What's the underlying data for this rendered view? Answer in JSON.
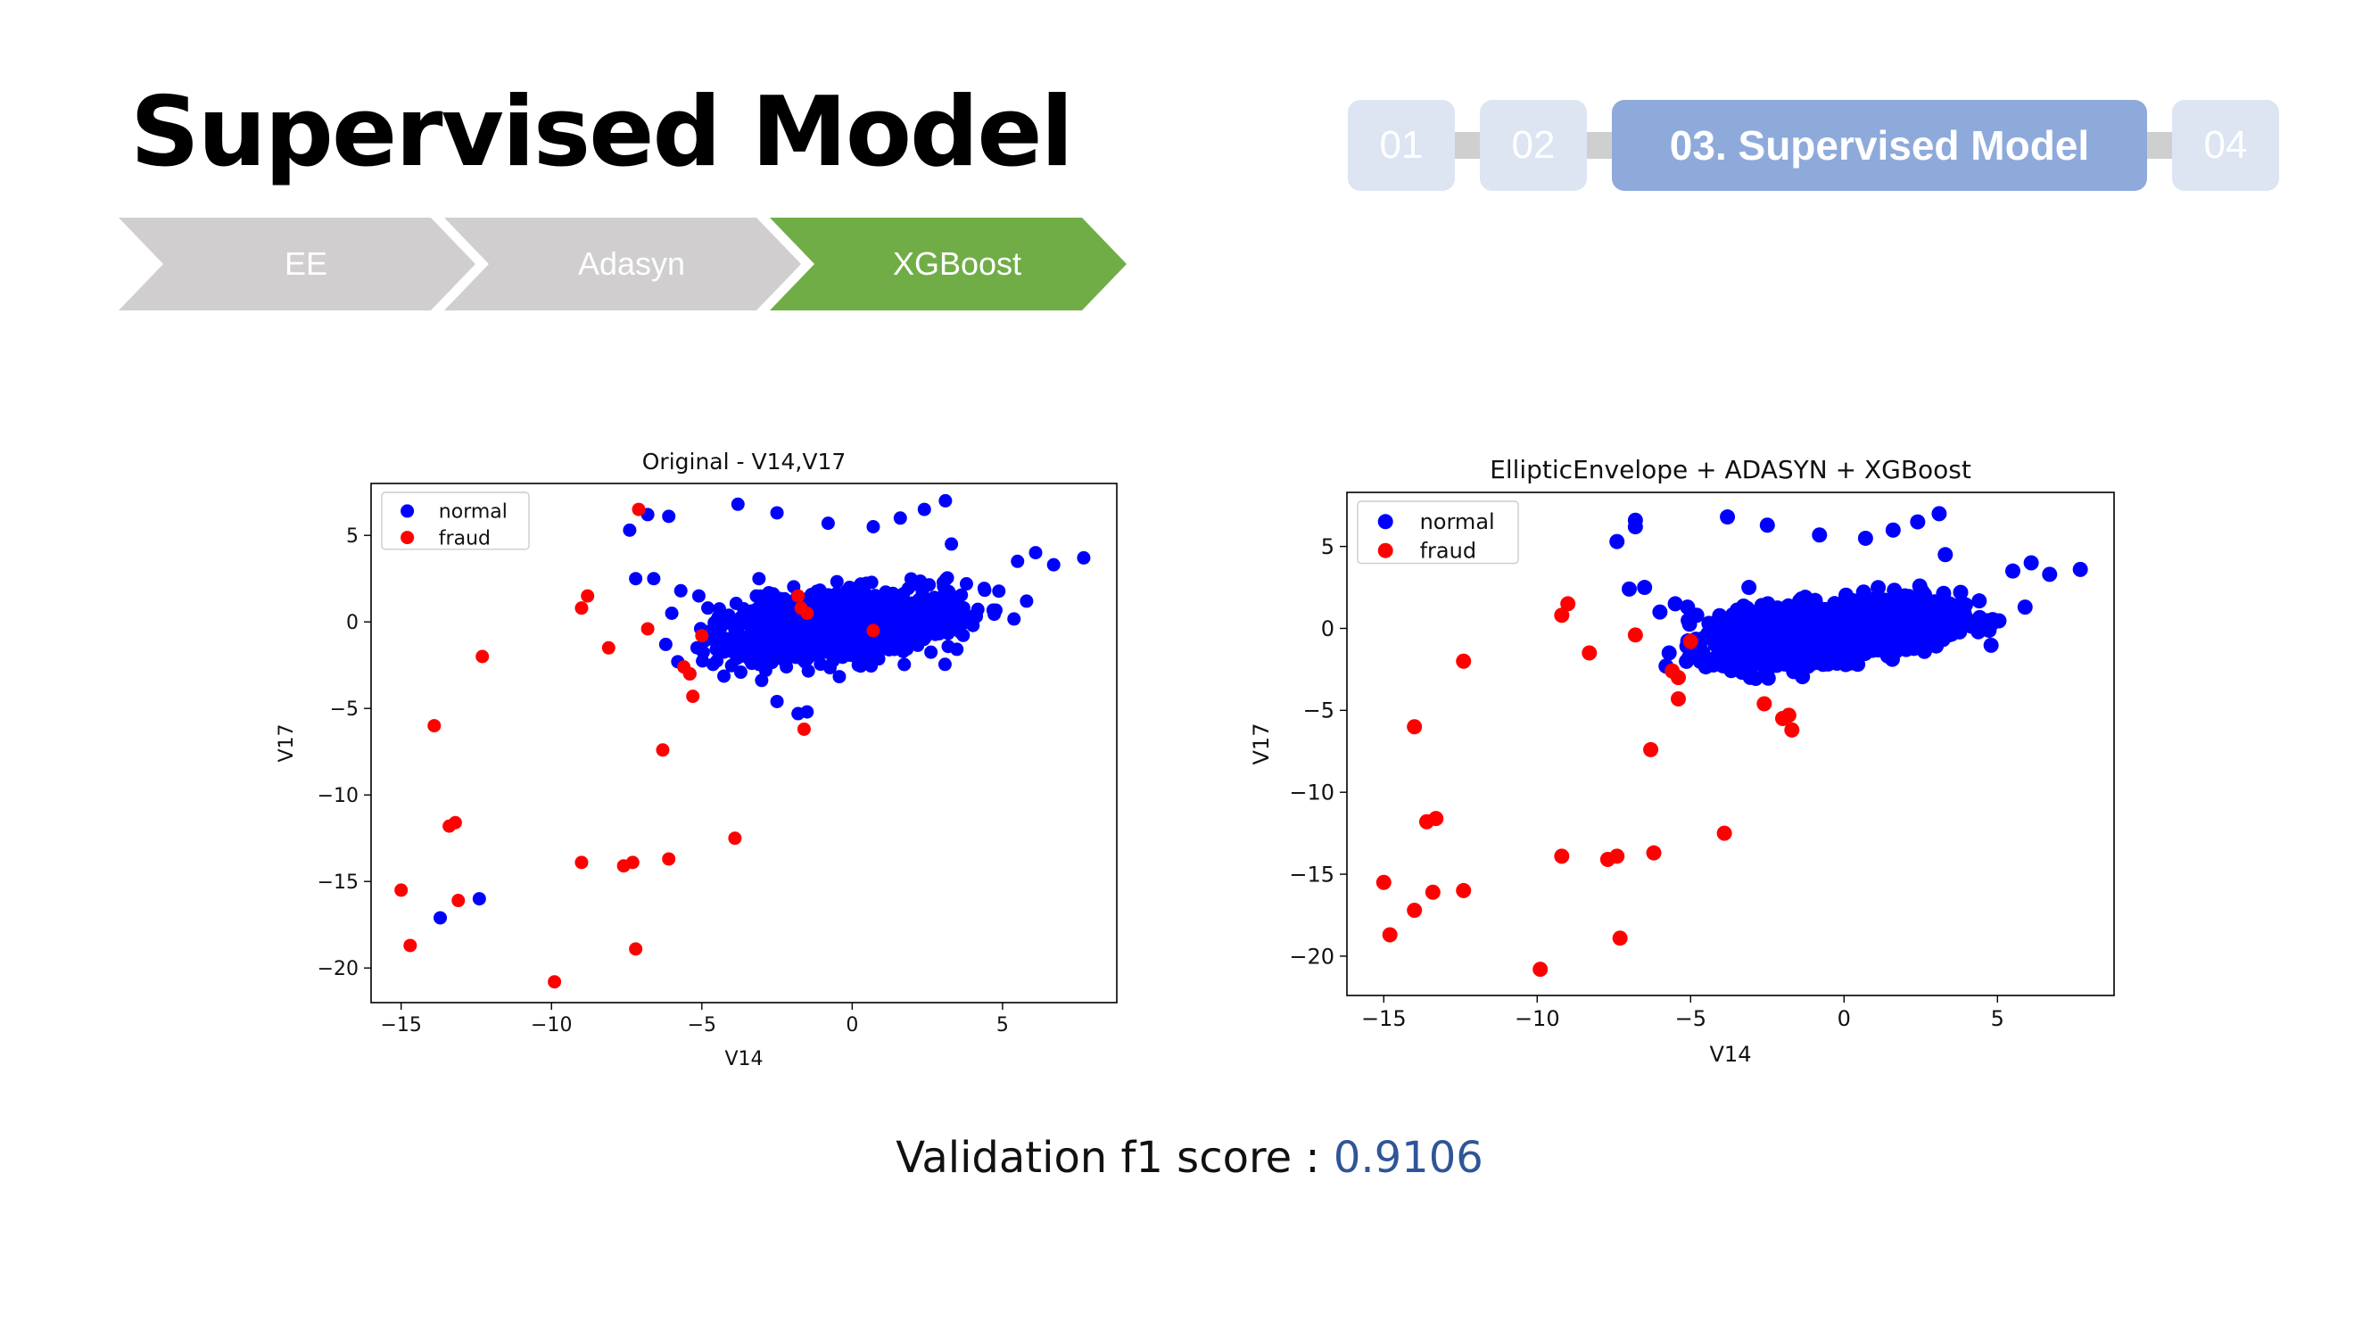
{
  "header": {
    "title": "Supervised Model"
  },
  "process_steps": [
    {
      "label": "EE",
      "state": "done",
      "color": "#d0cece"
    },
    {
      "label": "Adasyn",
      "state": "done",
      "color": "#d0cece"
    },
    {
      "label": "XGBoost",
      "state": "current",
      "color": "#70ad47"
    }
  ],
  "section_nav": [
    {
      "label": "01",
      "active": false
    },
    {
      "label": "02",
      "active": false
    },
    {
      "label": "03. Supervised Model",
      "active": true
    },
    {
      "label": "04",
      "active": false
    }
  ],
  "footer": {
    "score_label": "Validation f1 score : ",
    "score_value": "0.9106"
  },
  "colors": {
    "normal": "#0000ff",
    "fraud": "#ff0000",
    "nav_active": "#8eaadb",
    "nav_inactive": "#dde4f2",
    "score_value": "#2f5597"
  },
  "chart_data": [
    {
      "type": "scatter",
      "title": "Original - V14,V17",
      "xlabel": "V14",
      "ylabel": "V17",
      "xlim": [
        -16,
        8.8
      ],
      "ylim": [
        -22,
        8
      ],
      "xticks": [
        -15,
        -10,
        -5,
        0,
        5
      ],
      "yticks": [
        5,
        0,
        -5,
        -10,
        -15,
        -20
      ],
      "legend_position": "upper-left",
      "series": [
        {
          "name": "normal",
          "cluster": {
            "center": [
              -0.5,
              -0.2
            ],
            "spread": [
              3.4,
              1.5
            ],
            "count": 1400,
            "trend": 0.18
          },
          "points": [
            [
              -7.4,
              5.3
            ],
            [
              -6.8,
              6.2
            ],
            [
              -6.1,
              6.1
            ],
            [
              -7.2,
              2.5
            ],
            [
              -6.6,
              2.5
            ],
            [
              -6.0,
              0.5
            ],
            [
              -5.7,
              1.8
            ],
            [
              -5.1,
              1.5
            ],
            [
              -3.8,
              6.8
            ],
            [
              -2.5,
              6.3
            ],
            [
              -0.8,
              5.7
            ],
            [
              0.7,
              5.5
            ],
            [
              1.6,
              6.0
            ],
            [
              2.4,
              6.5
            ],
            [
              3.1,
              7.0
            ],
            [
              3.3,
              4.5
            ],
            [
              5.5,
              3.5
            ],
            [
              6.1,
              4.0
            ],
            [
              6.7,
              3.3
            ],
            [
              7.7,
              3.7
            ],
            [
              5.8,
              1.2
            ],
            [
              -4.8,
              0.8
            ],
            [
              -4.9,
              -0.9
            ],
            [
              -5.8,
              -2.3
            ],
            [
              -5.4,
              -3.0
            ],
            [
              -6.2,
              -1.3
            ],
            [
              -3.4,
              -2.2
            ],
            [
              -2.5,
              -4.6
            ],
            [
              -1.8,
              -5.3
            ],
            [
              -1.5,
              -5.2
            ],
            [
              -13.7,
              -17.1
            ],
            [
              -12.4,
              -16.0
            ],
            [
              -2.0,
              -2.0
            ],
            [
              -3.1,
              2.5
            ],
            [
              3.8,
              2.2
            ]
          ]
        },
        {
          "name": "fraud",
          "points": [
            [
              -7.1,
              6.5
            ],
            [
              -9.0,
              0.8
            ],
            [
              -8.8,
              1.5
            ],
            [
              -8.1,
              -1.5
            ],
            [
              -6.8,
              -0.4
            ],
            [
              -5.6,
              -2.6
            ],
            [
              -5.4,
              -3.0
            ],
            [
              -5.3,
              -4.3
            ],
            [
              -5.0,
              -0.8
            ],
            [
              -6.3,
              -7.4
            ],
            [
              -13.9,
              -6.0
            ],
            [
              -12.3,
              -2.0
            ],
            [
              -13.4,
              -11.8
            ],
            [
              -13.2,
              -11.6
            ],
            [
              -15.0,
              -15.5
            ],
            [
              -14.7,
              -18.7
            ],
            [
              -13.1,
              -16.1
            ],
            [
              -9.9,
              -20.8
            ],
            [
              -9.0,
              -13.9
            ],
            [
              -7.6,
              -14.1
            ],
            [
              -7.3,
              -13.9
            ],
            [
              -7.2,
              -18.9
            ],
            [
              -6.1,
              -13.7
            ],
            [
              -3.9,
              -12.5
            ],
            [
              -1.8,
              1.5
            ],
            [
              -1.7,
              0.8
            ],
            [
              -1.5,
              0.5
            ],
            [
              0.7,
              -0.5
            ],
            [
              -1.6,
              -6.2
            ]
          ]
        }
      ]
    },
    {
      "type": "scatter",
      "title": "EllipticEnvelope + ADASYN + XGBoost",
      "xlabel": "V14",
      "ylabel": "V17",
      "xlim": [
        -16.2,
        8.8
      ],
      "ylim": [
        -22.4,
        8.3
      ],
      "xticks": [
        -15,
        -10,
        -5,
        0,
        5
      ],
      "yticks": [
        5,
        0,
        -5,
        -10,
        -15,
        -20
      ],
      "legend_position": "upper-left",
      "series": [
        {
          "name": "normal",
          "cluster": {
            "center": [
              -0.5,
              -0.2
            ],
            "spread": [
              3.4,
              1.5
            ],
            "count": 1500,
            "trend": 0.18
          },
          "points": [
            [
              -7.4,
              5.3
            ],
            [
              -6.8,
              6.2
            ],
            [
              -6.8,
              6.6
            ],
            [
              -6.5,
              2.5
            ],
            [
              -7.0,
              2.4
            ],
            [
              -6.0,
              1.0
            ],
            [
              -5.5,
              1.5
            ],
            [
              -5.1,
              1.3
            ],
            [
              -3.8,
              6.8
            ],
            [
              -2.5,
              6.3
            ],
            [
              -0.8,
              5.7
            ],
            [
              0.7,
              5.5
            ],
            [
              1.6,
              6.0
            ],
            [
              2.4,
              6.5
            ],
            [
              3.1,
              7.0
            ],
            [
              3.3,
              4.5
            ],
            [
              5.5,
              3.5
            ],
            [
              6.1,
              4.0
            ],
            [
              6.7,
              3.3
            ],
            [
              7.7,
              3.6
            ],
            [
              5.9,
              1.3
            ],
            [
              -4.8,
              0.8
            ],
            [
              -5.7,
              -1.5
            ],
            [
              -5.8,
              -2.3
            ],
            [
              -4.6,
              -1.5
            ],
            [
              -3.0,
              -2.3
            ],
            [
              -2.0,
              -2.0
            ],
            [
              -3.1,
              2.5
            ],
            [
              3.8,
              2.2
            ]
          ]
        },
        {
          "name": "fraud",
          "points": [
            [
              -9.2,
              0.8
            ],
            [
              -9.0,
              1.5
            ],
            [
              -8.3,
              -1.5
            ],
            [
              -6.8,
              -0.4
            ],
            [
              -5.6,
              -2.6
            ],
            [
              -5.4,
              -3.0
            ],
            [
              -5.4,
              -4.3
            ],
            [
              -5.0,
              -0.8
            ],
            [
              -6.3,
              -7.4
            ],
            [
              -14.0,
              -6.0
            ],
            [
              -12.4,
              -2.0
            ],
            [
              -13.6,
              -11.8
            ],
            [
              -13.3,
              -11.6
            ],
            [
              -15.0,
              -15.5
            ],
            [
              -14.8,
              -18.7
            ],
            [
              -13.4,
              -16.1
            ],
            [
              -9.9,
              -20.8
            ],
            [
              -9.2,
              -13.9
            ],
            [
              -7.7,
              -14.1
            ],
            [
              -7.4,
              -13.9
            ],
            [
              -7.3,
              -18.9
            ],
            [
              -6.2,
              -13.7
            ],
            [
              -3.9,
              -12.5
            ],
            [
              -14.0,
              -17.2
            ],
            [
              -12.4,
              -16.0
            ],
            [
              -2.6,
              -4.6
            ],
            [
              -2.0,
              -5.5
            ],
            [
              -1.8,
              -5.3
            ],
            [
              -1.7,
              -6.2
            ]
          ]
        }
      ]
    }
  ]
}
